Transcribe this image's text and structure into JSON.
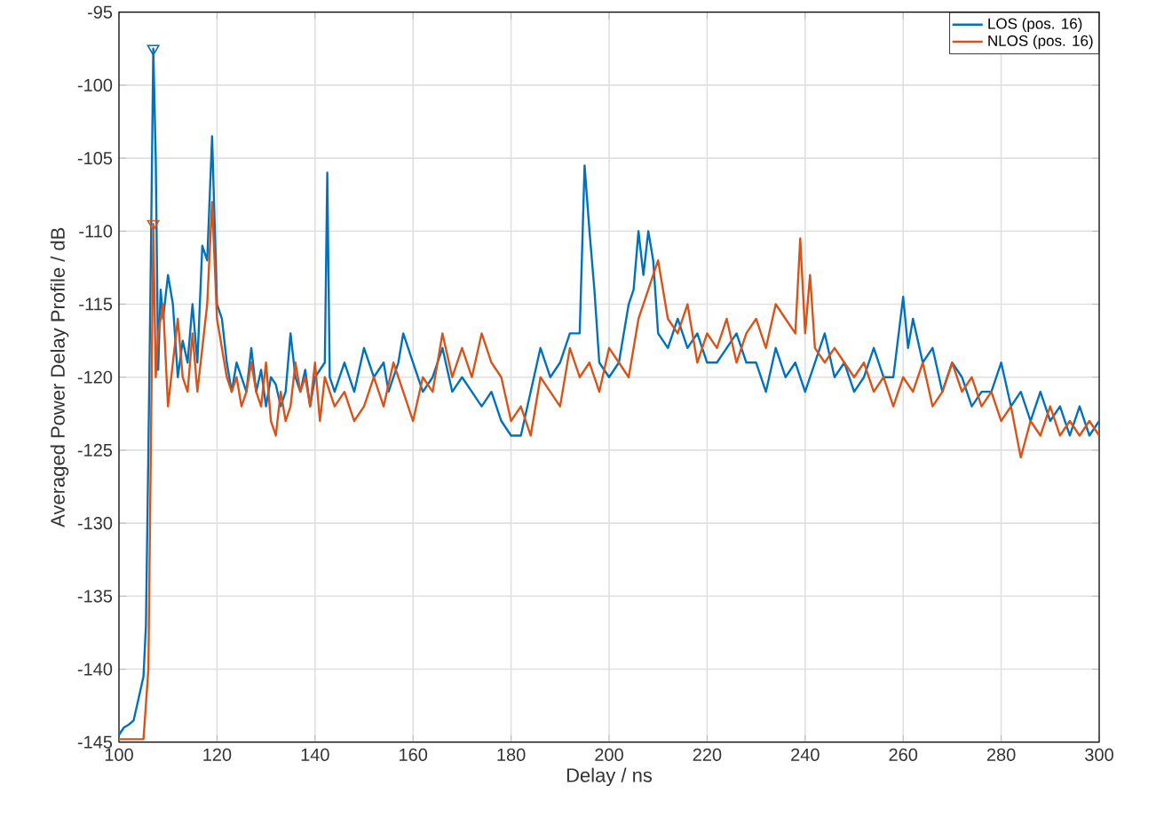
{
  "chart_data": {
    "type": "line",
    "xlabel": "Delay / ns",
    "ylabel": "Averaged Power Delay Profile / dB",
    "xlim": [
      100,
      300
    ],
    "ylim": [
      -145,
      -95
    ],
    "xticks": [
      100,
      120,
      140,
      160,
      180,
      200,
      220,
      240,
      260,
      280,
      300
    ],
    "yticks": [
      -145,
      -140,
      -135,
      -130,
      -125,
      -120,
      -115,
      -110,
      -105,
      -100,
      -95
    ],
    "grid": true,
    "legend": "top right",
    "marker": "none",
    "line_style": "solid",
    "series": [
      {
        "name": "LOS (pos. 16)",
        "color": "#0072bd",
        "x": [
          100,
          101,
          102,
          103,
          104,
          105,
          105.5,
          106,
          106.5,
          107,
          107.5,
          108,
          108.5,
          109,
          110,
          111,
          112,
          113,
          114,
          115,
          116,
          117,
          118,
          119,
          120,
          121,
          122,
          123,
          124,
          126,
          127,
          128,
          129,
          130,
          131,
          132,
          133,
          134,
          135,
          136,
          137,
          138,
          139,
          140,
          141,
          142,
          142.5,
          143,
          144,
          146,
          148,
          150,
          152,
          154,
          155,
          157,
          158,
          160,
          162,
          164,
          166,
          168,
          170,
          172,
          174,
          176,
          178,
          180,
          182,
          184,
          186,
          188,
          190,
          192,
          194,
          195,
          196,
          197,
          198,
          200,
          202,
          204,
          205,
          206,
          207,
          208,
          209,
          210,
          212,
          214,
          216,
          218,
          220,
          222,
          224,
          226,
          228,
          230,
          232,
          234,
          236,
          238,
          240,
          242,
          244,
          246,
          248,
          250,
          252,
          254,
          256,
          258,
          260,
          261,
          262,
          264,
          266,
          268,
          270,
          272,
          274,
          276,
          278,
          280,
          282,
          284,
          286,
          288,
          290,
          292,
          294,
          296,
          298,
          300
        ],
        "values": [
          -144.5,
          -144,
          -143.8,
          -143.5,
          -142,
          -140.5,
          -137,
          -125,
          -112,
          -97.5,
          -105,
          -119.5,
          -114,
          -116,
          -113,
          -115,
          -120,
          -117.5,
          -119,
          -115,
          -119,
          -111,
          -112,
          -103.5,
          -115,
          -116,
          -119,
          -121,
          -119,
          -121,
          -118,
          -121,
          -119.5,
          -122,
          -120,
          -120.5,
          -122,
          -121,
          -117,
          -120,
          -121,
          -119.5,
          -122,
          -120,
          -119.5,
          -119,
          -106,
          -120,
          -121,
          -119,
          -121,
          -118,
          -120,
          -119,
          -121,
          -119,
          -117,
          -119,
          -121,
          -120,
          -118,
          -121,
          -120,
          -121,
          -122,
          -121,
          -123,
          -124,
          -124,
          -121,
          -118,
          -120,
          -119,
          -117,
          -117,
          -105.5,
          -110,
          -114,
          -119,
          -120,
          -119,
          -115,
          -114,
          -110,
          -113,
          -110,
          -112,
          -117,
          -118,
          -116,
          -118,
          -117,
          -119,
          -119,
          -118,
          -117,
          -119,
          -119,
          -121,
          -118,
          -120,
          -119,
          -121,
          -119,
          -117,
          -120,
          -119,
          -121,
          -120,
          -118,
          -120,
          -120,
          -114.5,
          -118,
          -116,
          -119,
          -118,
          -121,
          -119,
          -120,
          -122,
          -121,
          -121,
          -119,
          -122,
          -121,
          -123,
          -121,
          -123,
          -122,
          -124,
          -122,
          -124,
          -123
        ]
      },
      {
        "name": "NLOS (pos. 16)",
        "color": "#d95319",
        "x": [
          100,
          104,
          105,
          106,
          106.5,
          107,
          107.5,
          108,
          109,
          110,
          111,
          112,
          113,
          114,
          115,
          116,
          117,
          118,
          119,
          120,
          121,
          122,
          123,
          124,
          125,
          126,
          127,
          128,
          129,
          130,
          131,
          132,
          133,
          134,
          135,
          136,
          137,
          138,
          139,
          140,
          141,
          142,
          144,
          146,
          148,
          150,
          152,
          154,
          156,
          158,
          160,
          162,
          164,
          166,
          168,
          170,
          172,
          174,
          176,
          178,
          180,
          182,
          184,
          186,
          188,
          190,
          192,
          194,
          196,
          198,
          200,
          202,
          204,
          206,
          208,
          210,
          212,
          214,
          216,
          218,
          220,
          222,
          224,
          226,
          228,
          230,
          232,
          234,
          236,
          238,
          239,
          240,
          241,
          242,
          244,
          246,
          248,
          250,
          252,
          254,
          256,
          258,
          260,
          262,
          264,
          266,
          268,
          270,
          272,
          274,
          276,
          278,
          280,
          282,
          284,
          286,
          288,
          290,
          292,
          294,
          296,
          298,
          300
        ],
        "values": [
          -144.8,
          -144.8,
          -144.8,
          -140,
          -125,
          -109.5,
          -120,
          -117,
          -115,
          -122,
          -119,
          -116,
          -120,
          -121,
          -117,
          -121,
          -118,
          -115,
          -108,
          -116,
          -118,
          -120,
          -121,
          -120,
          -122,
          -121,
          -119,
          -121,
          -122,
          -119,
          -123,
          -124,
          -121,
          -123,
          -122,
          -119,
          -121,
          -120,
          -122,
          -119,
          -123,
          -120,
          -122,
          -121,
          -123,
          -122,
          -120,
          -122,
          -119,
          -121,
          -123,
          -120,
          -121,
          -117,
          -120,
          -118,
          -120,
          -117,
          -119,
          -120,
          -123,
          -122,
          -124,
          -120,
          -121,
          -122,
          -118,
          -120,
          -119,
          -121,
          -118,
          -119,
          -120,
          -116,
          -114,
          -112,
          -116,
          -117,
          -115,
          -119,
          -117,
          -118,
          -116,
          -119,
          -117,
          -116,
          -118,
          -115,
          -116,
          -117,
          -110.5,
          -117,
          -113,
          -118,
          -119,
          -118,
          -119,
          -120,
          -119,
          -121,
          -120,
          -122,
          -120,
          -121,
          -119,
          -122,
          -121,
          -119,
          -121,
          -120,
          -122,
          -121,
          -123,
          -122,
          -125.5,
          -123,
          -124,
          -122,
          -124,
          -123,
          -124,
          -123,
          -124
        ]
      },
      {
        "type": "scatter",
        "marker": "triangle",
        "color": "#0072bd",
        "x": [
          107
        ],
        "values": [
          -97.5
        ]
      },
      {
        "type": "scatter",
        "marker": "triangle",
        "color": "#d95319",
        "x": [
          107
        ],
        "values": [
          -109.5
        ]
      }
    ]
  }
}
